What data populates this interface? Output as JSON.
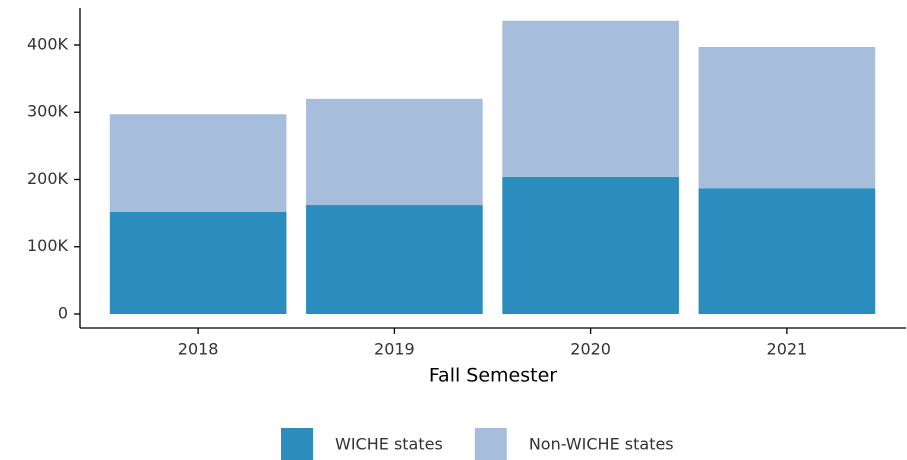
{
  "chart_data": {
    "type": "stacked_bar",
    "x_label": "Fall Semester",
    "categories": [
      "2018",
      "2019",
      "2020",
      "2021"
    ],
    "series": [
      {
        "name": "WICHE states",
        "color": "#2b8cbe",
        "values": [
          152000,
          162000,
          204000,
          187000
        ]
      },
      {
        "name": "Non-WICHE states",
        "color": "#a6bddb",
        "values": [
          145000,
          158000,
          232000,
          210000
        ]
      }
    ],
    "ylim": [
      0,
      455000
    ],
    "yticks": [
      0,
      {
        "value": 100000,
        "label": "100K"
      },
      {
        "value": 200000,
        "label": "200K"
      },
      {
        "value": 300000,
        "label": "300K"
      },
      {
        "value": 400000,
        "label": "400K"
      }
    ],
    "legend": "bottom"
  }
}
